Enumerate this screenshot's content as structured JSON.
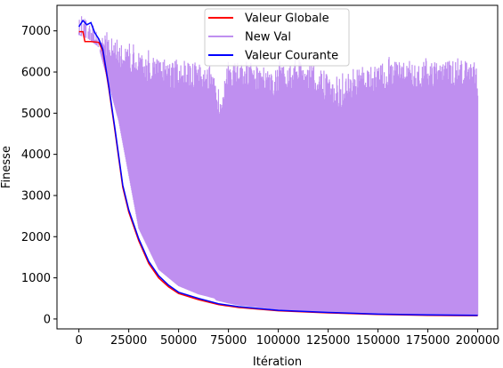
{
  "chart_data": {
    "type": "line",
    "title": "",
    "xlabel": "Itération",
    "ylabel": "Finesse",
    "xlim": [
      -11000,
      210000
    ],
    "ylim": [
      -240,
      7620
    ],
    "xticks": [
      0,
      25000,
      50000,
      75000,
      100000,
      125000,
      150000,
      175000,
      200000
    ],
    "xtick_labels": [
      "0",
      "25000",
      "50000",
      "75000",
      "100000",
      "125000",
      "150000",
      "175000",
      "200000"
    ],
    "yticks": [
      0,
      1000,
      2000,
      3000,
      4000,
      5000,
      6000,
      7000
    ],
    "ytick_labels": [
      "0",
      "1000",
      "2000",
      "3000",
      "4000",
      "5000",
      "6000",
      "7000"
    ],
    "grid": false,
    "legend_position": "top-center",
    "series": [
      {
        "name": "Valeur Globale",
        "color": "#ff0000",
        "x": [
          0,
          2000,
          3000,
          6000,
          10000,
          12000,
          15000,
          18000,
          20000,
          22000,
          25000,
          30000,
          35000,
          40000,
          45000,
          50000,
          60000,
          70000,
          80000,
          100000,
          125000,
          150000,
          175000,
          200000
        ],
        "y": [
          6980,
          6980,
          6740,
          6740,
          6720,
          6500,
          5600,
          4600,
          3900,
          3200,
          2600,
          1900,
          1350,
          1000,
          780,
          620,
          470,
          350,
          280,
          200,
          150,
          110,
          90,
          80
        ]
      },
      {
        "name": "New Val",
        "color": "#bf8ff0",
        "envelope_x": [
          0,
          5000,
          10000,
          20000,
          30000,
          40000,
          50000,
          60000,
          68000,
          69000,
          75000,
          80000,
          90000,
          100000,
          110000,
          120000,
          128000,
          140000,
          150000,
          160000,
          170000,
          180000,
          190000,
          200000
        ],
        "envelope_upper": [
          7550,
          7400,
          7100,
          6850,
          6650,
          6500,
          6450,
          6350,
          6300,
          5450,
          6400,
          6350,
          6300,
          6300,
          6350,
          6300,
          5900,
          6300,
          6350,
          6400,
          6300,
          6400,
          6450,
          6300
        ],
        "envelope_lower": [
          6900,
          6800,
          6600,
          4800,
          2200,
          1200,
          800,
          600,
          500,
          450,
          380,
          330,
          280,
          220,
          190,
          170,
          150,
          130,
          110,
          100,
          95,
          90,
          85,
          80
        ]
      },
      {
        "name": "Valeur Courante",
        "color": "#0000ff",
        "x": [
          0,
          2000,
          4000,
          6000,
          8000,
          10000,
          12000,
          15000,
          18000,
          20000,
          22000,
          25000,
          30000,
          35000,
          40000,
          45000,
          50000,
          60000,
          70000,
          80000,
          100000,
          125000,
          150000,
          175000,
          200000
        ],
        "y": [
          7100,
          7250,
          7150,
          7200,
          6950,
          6800,
          6550,
          5650,
          4650,
          3950,
          3250,
          2650,
          1950,
          1400,
          1050,
          820,
          650,
          500,
          370,
          300,
          210,
          160,
          120,
          100,
          90
        ]
      }
    ]
  }
}
